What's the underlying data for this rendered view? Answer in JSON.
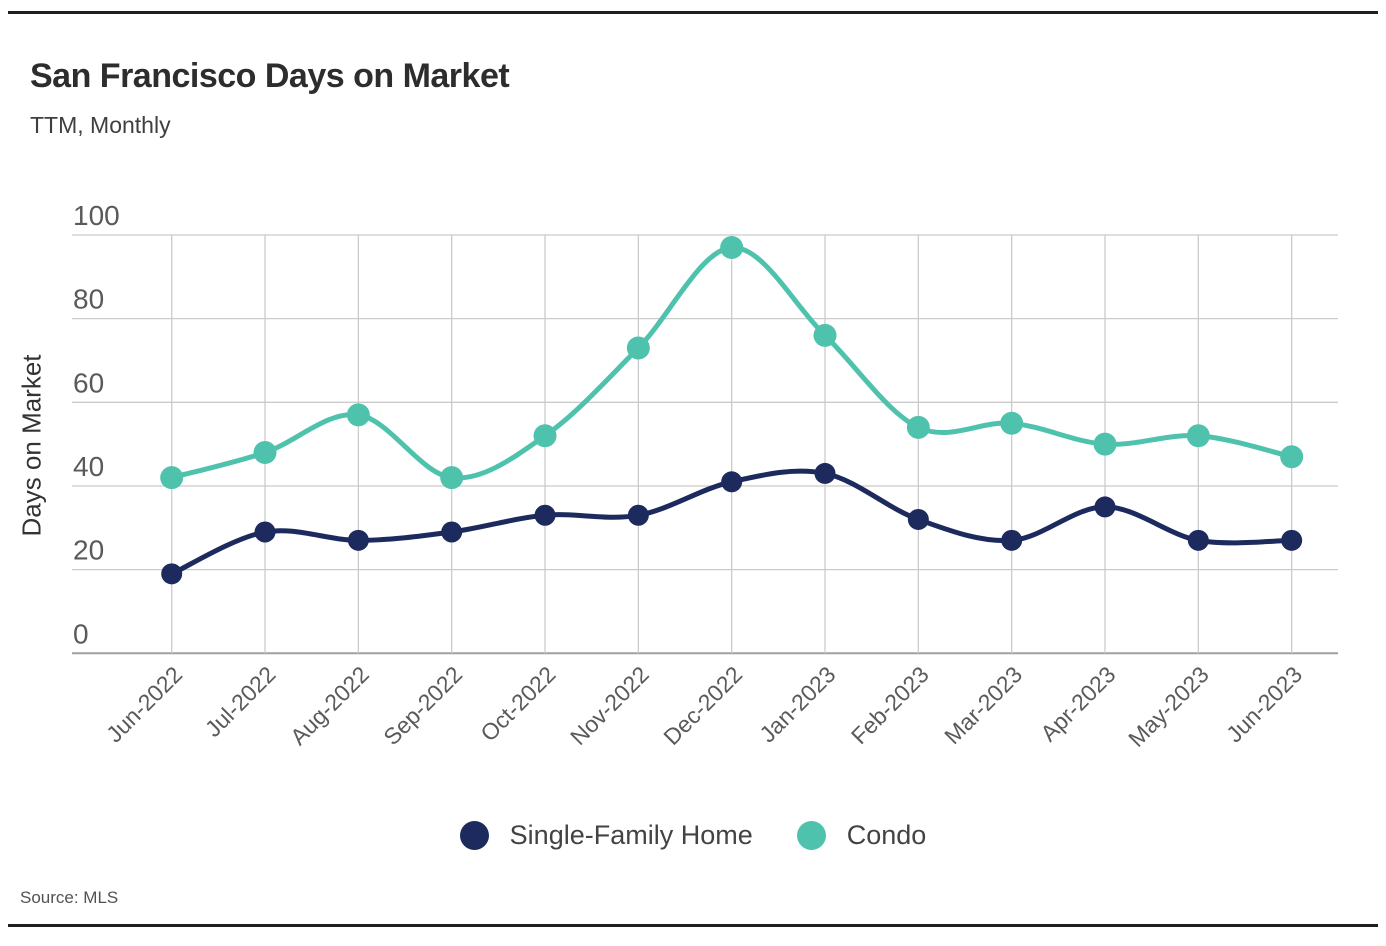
{
  "page": {
    "source_text": "Source: MLS"
  },
  "chart_data": {
    "type": "line",
    "title": "San Francisco Days on Market",
    "subtitle": "TTM, Monthly",
    "ylabel": "Days on Market",
    "xlabel": "",
    "categories": [
      "Jun-2022",
      "Jul-2022",
      "Aug-2022",
      "Sep-2022",
      "Oct-2022",
      "Nov-2022",
      "Dec-2022",
      "Jan-2023",
      "Feb-2023",
      "Mar-2023",
      "Apr-2023",
      "May-2023",
      "Jun-2023"
    ],
    "series": [
      {
        "name": "Single-Family Home",
        "color": "#1c2a5e",
        "values": [
          19,
          29,
          27,
          29,
          33,
          33,
          41,
          43,
          32,
          27,
          35,
          27,
          27
        ]
      },
      {
        "name": "Condo",
        "color": "#4fc2ae",
        "values": [
          42,
          48,
          57,
          42,
          52,
          73,
          97,
          76,
          54,
          55,
          50,
          52,
          47
        ]
      }
    ],
    "yticks": [
      0,
      20,
      40,
      60,
      80,
      100
    ],
    "ylim": [
      0,
      100
    ],
    "grid": true,
    "legend_position": "bottom",
    "colors": {
      "gridline": "#cbcbcb",
      "axis_line": "#a0a0a0",
      "tick_label": "#5a5a5a"
    }
  }
}
